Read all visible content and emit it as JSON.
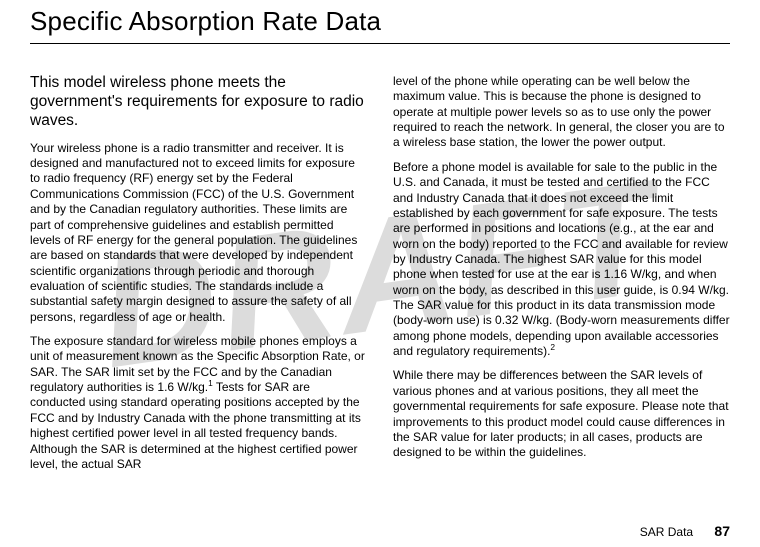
{
  "watermark": "DRAFT",
  "title": "Specific Absorption Rate Data",
  "left": {
    "leadin": "This model wireless phone meets the government's requirements for exposure to radio waves.",
    "p1": "Your wireless phone is a radio transmitter and receiver. It is designed and manufactured not to exceed limits for exposure to radio frequency (RF) energy set by the Federal Communications Commission (FCC) of the U.S. Government and by the Canadian regulatory authorities. These limits are part of comprehensive guidelines and establish permitted levels of RF energy for the general population. The guidelines are based on standards that were developed by independent scientific organizations through periodic and thorough evaluation of scientific studies. The standards include a substantial safety margin designed to assure the safety of all persons, regardless of age or health.",
    "p2_a": "The exposure standard for wireless mobile phones employs a unit of measurement known as the Specific Absorption Rate, or SAR. The SAR limit set by the FCC and by the Canadian regulatory authorities is 1.6 W/kg.",
    "p2_sup": "1",
    "p2_b": " Tests for SAR are conducted using standard operating positions accepted by the FCC and by Industry Canada with the phone transmitting at its highest certified power level in all tested frequency bands. Although the SAR is determined at the highest certified power level, the actual SAR"
  },
  "right": {
    "p1": "level of the phone while operating can be well below the maximum value. This is because the phone is designed to operate at multiple power levels so as to use only the power required to reach the network. In general, the closer you are to a wireless base station, the lower the power output.",
    "p2_a": "Before a phone model is available for sale to the public in the U.S. and Canada, it must be tested and certified to the FCC and Industry Canada that it does not exceed the limit established by each government for safe exposure. The tests are performed in positions and locations (e.g., at the ear and worn on the body) reported to the FCC and available for review by Industry Canada. The highest SAR value for this model phone when tested for use at the ear is 1.16 W/kg, and when worn on the body, as described in this user guide, is 0.94 W/kg. The SAR value for this product in its data transmission mode (body-worn use) is 0.32 W/kg. (Body-worn measurements differ among phone models, depending upon available accessories and regulatory requirements).",
    "p2_sup": "2",
    "p3": "While there may be differences between the SAR levels of various phones and at various positions, they all meet the governmental requirements for safe exposure. Please note that improvements to this product model could cause differences in the SAR value for later products; in all cases, products are designed to be within the guidelines."
  },
  "footer": {
    "label": "SAR Data",
    "page": "87"
  }
}
